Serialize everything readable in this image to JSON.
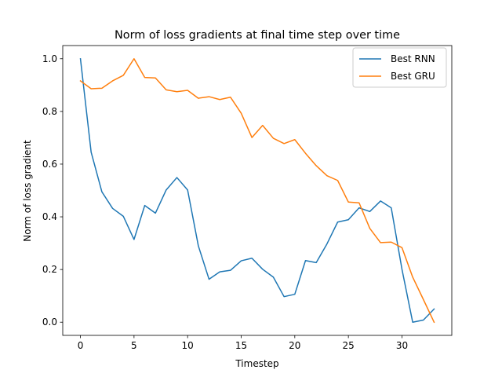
{
  "chart_data": {
    "type": "line",
    "title": "Norm of loss gradients at final time step over time",
    "xlabel": "Timestep",
    "ylabel": "Norm of loss gradient",
    "xlim": [
      -1.65,
      34.65
    ],
    "ylim": [
      -0.05,
      1.05
    ],
    "xticks": [
      0,
      5,
      10,
      15,
      20,
      25,
      30
    ],
    "xtick_labels": [
      "0",
      "5",
      "10",
      "15",
      "20",
      "25",
      "30"
    ],
    "yticks": [
      0.0,
      0.2,
      0.4,
      0.6,
      0.8,
      1.0
    ],
    "ytick_labels": [
      "0.0",
      "0.2",
      "0.4",
      "0.6",
      "0.8",
      "1.0"
    ],
    "grid": false,
    "legend": "top-right",
    "x": [
      0,
      1,
      2,
      3,
      4,
      5,
      6,
      7,
      8,
      9,
      10,
      11,
      12,
      13,
      14,
      15,
      16,
      17,
      18,
      19,
      20,
      21,
      22,
      23,
      24,
      25,
      26,
      27,
      28,
      29,
      30,
      31,
      32,
      33
    ],
    "series": [
      {
        "name": "Best RNN",
        "color": "#1f77b4",
        "values": [
          1.0,
          0.645,
          0.495,
          0.432,
          0.402,
          0.314,
          0.443,
          0.414,
          0.502,
          0.549,
          0.502,
          0.29,
          0.163,
          0.191,
          0.197,
          0.233,
          0.243,
          0.201,
          0.171,
          0.097,
          0.106,
          0.234,
          0.226,
          0.297,
          0.38,
          0.389,
          0.434,
          0.42,
          0.46,
          0.434,
          0.201,
          0.0,
          0.008,
          0.05
        ]
      },
      {
        "name": "Best GRU",
        "color": "#ff7f0e",
        "values": [
          0.916,
          0.886,
          0.888,
          0.916,
          0.937,
          1.0,
          0.929,
          0.927,
          0.882,
          0.875,
          0.88,
          0.85,
          0.856,
          0.845,
          0.854,
          0.793,
          0.701,
          0.747,
          0.698,
          0.678,
          0.693,
          0.641,
          0.594,
          0.556,
          0.538,
          0.456,
          0.453,
          0.356,
          0.302,
          0.304,
          0.283,
          0.171,
          0.086,
          0.0
        ]
      }
    ]
  }
}
